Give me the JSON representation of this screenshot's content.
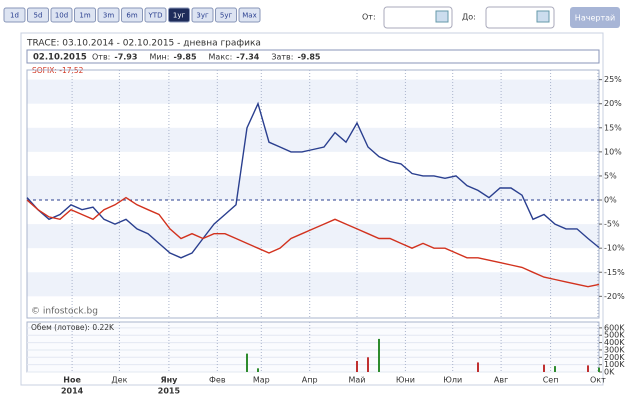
{
  "toolbar": {
    "buttons": [
      "1d",
      "5d",
      "10d",
      "1m",
      "3m",
      "6m",
      "YTD",
      "1уг",
      "3уг",
      "5уг",
      "Max"
    ],
    "selected": 7,
    "from_label": "От:",
    "to_label": "До:",
    "draw_button": "Начертай"
  },
  "chart_data": {
    "type": "line",
    "title": "TRACE: 03.10.2014 - 02.10.2015 - дневна графика",
    "info": {
      "date": "02.10.2015",
      "fields": [
        {
          "label": "Отв:",
          "value": "-7.93"
        },
        {
          "label": "Мин:",
          "value": "-9.85"
        },
        {
          "label": "Макс:",
          "value": "-7.34"
        },
        {
          "label": "Затв:",
          "value": "-9.85"
        }
      ]
    },
    "series_label": "SOFIX: -17.52",
    "watermark": "© infostock.bg",
    "series": [
      {
        "name": "TRACE",
        "color": "#2a3f8f",
        "values": [
          0.5,
          -2,
          -4,
          -3,
          -1,
          -2,
          -1.5,
          -4,
          -5,
          -4,
          -6,
          -7,
          -9,
          -11,
          -12,
          -11,
          -8,
          -5,
          -3,
          -1,
          15,
          20,
          12,
          11,
          10,
          10,
          10.5,
          11,
          14,
          12,
          16,
          11,
          9,
          8,
          7.5,
          5.5,
          5,
          5,
          4.5,
          5,
          3,
          2,
          0.5,
          2.5,
          2.5,
          1,
          -4,
          -3,
          -5,
          -6,
          -6,
          -8,
          -9.85
        ]
      },
      {
        "name": "SOFIX",
        "color": "#d2321e",
        "values": [
          0,
          -2,
          -3.5,
          -4,
          -2,
          -3,
          -4,
          -2,
          -1,
          0.5,
          -1,
          -2,
          -3,
          -6,
          -8,
          -7,
          -8,
          -7,
          -7,
          -8,
          -9,
          -10,
          -11,
          -10,
          -8,
          -7,
          -6,
          -5,
          -4,
          -5,
          -6,
          -7,
          -8,
          -8,
          -9,
          -10,
          -9,
          -10,
          -10,
          -11,
          -12,
          -12,
          -12.5,
          -13,
          -13.5,
          -14,
          -15,
          -16,
          -16.5,
          -17,
          -17.5,
          -18,
          -17.52
        ]
      }
    ],
    "xlim": [
      0,
      52
    ],
    "xticks": [
      {
        "value": 4.1,
        "label": "Ное",
        "year": "2014"
      },
      {
        "value": 8.4,
        "label": "Дек"
      },
      {
        "value": 12.9,
        "label": "Яну",
        "year": "2015"
      },
      {
        "value": 17.3,
        "label": "Фев"
      },
      {
        "value": 21.3,
        "label": "Мар"
      },
      {
        "value": 25.7,
        "label": "Апр"
      },
      {
        "value": 30,
        "label": "Май"
      },
      {
        "value": 34.4,
        "label": "Юни"
      },
      {
        "value": 38.7,
        "label": "Юли"
      },
      {
        "value": 43.1,
        "label": "Авг"
      },
      {
        "value": 47.6,
        "label": "Сеп"
      },
      {
        "value": 51.9,
        "label": "Окт"
      }
    ],
    "ylim": [
      -24.5,
      27
    ],
    "yticks": [
      {
        "value": 25,
        "label": "25%"
      },
      {
        "value": 20,
        "label": "20%"
      },
      {
        "value": 15,
        "label": "15%"
      },
      {
        "value": 10,
        "label": "10%"
      },
      {
        "value": 5,
        "label": "5%"
      },
      {
        "value": 0,
        "label": "0%"
      },
      {
        "value": -5,
        "label": "-5%"
      },
      {
        "value": -10,
        "label": "-10%"
      },
      {
        "value": -15,
        "label": "-15%"
      },
      {
        "value": -20,
        "label": "-20%"
      }
    ],
    "grid": true,
    "volume": {
      "label": "Обем (лотове): 0.22K",
      "x": [
        20,
        21,
        30,
        31,
        32,
        41,
        47,
        48,
        51,
        52
      ],
      "values": [
        250000,
        50000,
        150000,
        200000,
        450000,
        130000,
        100000,
        80000,
        90000,
        60000
      ],
      "colors": [
        "#2e8b2e",
        "#2e8b2e",
        "#c03030",
        "#c03030",
        "#2e8b2e",
        "#c03030",
        "#c03030",
        "#2e8b2e",
        "#c03030",
        "#2e8b2e"
      ],
      "ylim": [
        0,
        680000
      ],
      "yticks": [
        {
          "value": 600000,
          "label": "600K"
        },
        {
          "value": 500000,
          "label": "500K"
        },
        {
          "value": 400000,
          "label": "400K"
        },
        {
          "value": 300000,
          "label": "300K"
        },
        {
          "value": 200000,
          "label": "200K"
        },
        {
          "value": 100000,
          "label": "100K"
        },
        {
          "value": 0,
          "label": "0K"
        }
      ]
    }
  }
}
